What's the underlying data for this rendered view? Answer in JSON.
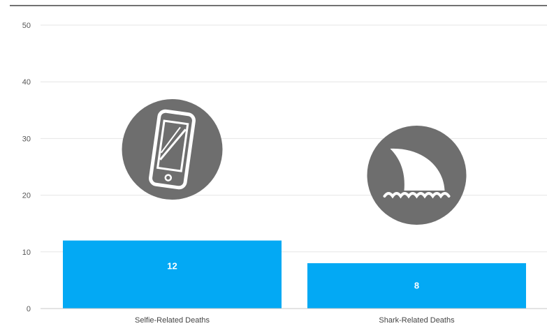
{
  "chart_data": {
    "type": "bar",
    "categories": [
      "Selfie-Related Deaths",
      "Shark-Related Deaths"
    ],
    "values": [
      12,
      8
    ],
    "data_labels": [
      "12",
      "8"
    ],
    "title": "",
    "xlabel": "",
    "ylabel": "",
    "ylim": [
      0,
      50
    ],
    "yticks": [
      0,
      10,
      20,
      30,
      40,
      50
    ],
    "grid": true,
    "legend": "none",
    "bar_color": "#03a9f4",
    "icon_color": "#6e6e6e",
    "icons": [
      "smartphone-icon",
      "shark-fin-icon"
    ]
  }
}
